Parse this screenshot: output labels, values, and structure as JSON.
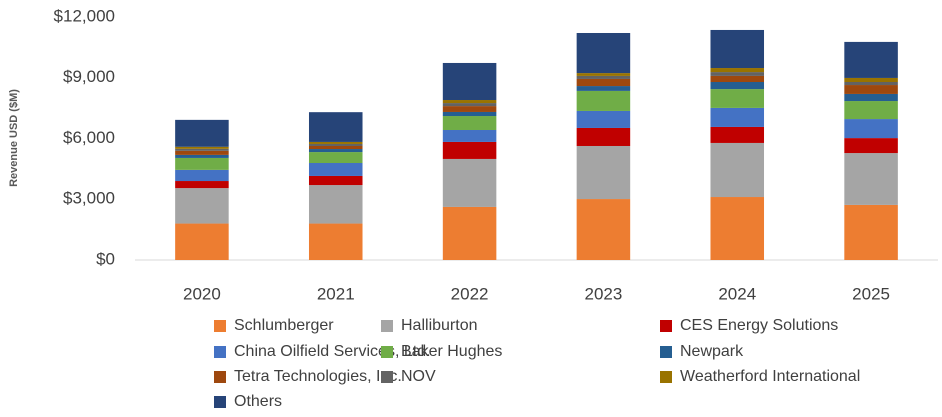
{
  "chart_data": {
    "type": "stacked_bar",
    "y_label": "Revenue USD ($M)",
    "categories": [
      "2020",
      "2021",
      "2022",
      "2023",
      "2024",
      "2025"
    ],
    "series": [
      {
        "name": "Schlumberger",
        "color": "#ed7d31",
        "values": [
          1800,
          1800,
          2620,
          3010,
          3110,
          2720
        ]
      },
      {
        "name": "Halliburton",
        "color": "#a5a5a5",
        "values": [
          1750,
          1900,
          2370,
          2620,
          2670,
          2560
        ]
      },
      {
        "name": "CES Energy Solutions",
        "color": "#c00000",
        "values": [
          350,
          450,
          840,
          890,
          790,
          740
        ]
      },
      {
        "name": "China Oilfield Services, Ltd.",
        "color": "#4472c4",
        "values": [
          550,
          640,
          590,
          840,
          940,
          940
        ]
      },
      {
        "name": "Baker Hughes",
        "color": "#70ad47",
        "values": [
          590,
          540,
          690,
          990,
          930,
          890
        ]
      },
      {
        "name": "Newpark",
        "color": "#255e91",
        "values": [
          150,
          150,
          200,
          240,
          350,
          350
        ]
      },
      {
        "name": "Tetra Technologies, Inc.",
        "color": "#9e480e",
        "values": [
          200,
          150,
          290,
          350,
          300,
          440
        ]
      },
      {
        "name": "NOV",
        "color": "#636363",
        "values": [
          100,
          100,
          150,
          150,
          190,
          150
        ]
      },
      {
        "name": "Weatherford International",
        "color": "#997300",
        "values": [
          100,
          100,
          150,
          140,
          200,
          200
        ]
      },
      {
        "name": "Others",
        "color": "#264478",
        "values": [
          1330,
          1470,
          1830,
          1980,
          1880,
          1780
        ]
      }
    ],
    "ylim": [
      0,
      12000
    ],
    "yticks": [
      {
        "value": 0,
        "label": "$0"
      },
      {
        "value": 3000,
        "label": "$3,000"
      },
      {
        "value": 6000,
        "label": "$6,000"
      },
      {
        "value": 9000,
        "label": "$9,000"
      },
      {
        "value": 12000,
        "label": "$12,000"
      }
    ],
    "grid": false,
    "legend": "bottom"
  }
}
